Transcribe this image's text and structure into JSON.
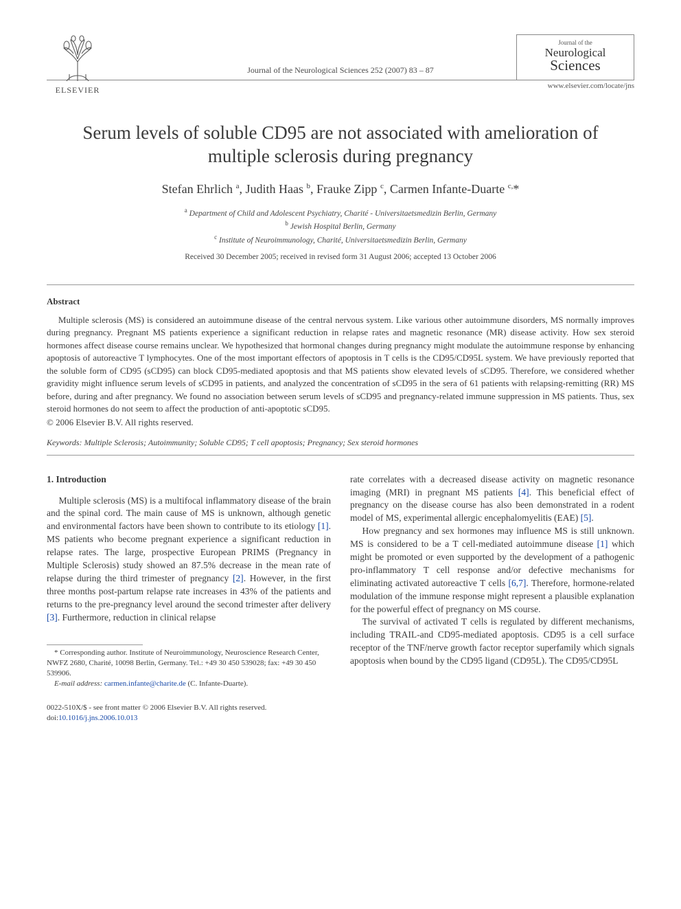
{
  "header": {
    "publisher_label": "ELSEVIER",
    "citation": "Journal of the Neurological Sciences 252 (2007) 83 – 87",
    "journal_logo": {
      "line_small": "Journal of the",
      "line1": "Neurological",
      "line2": "Sciences"
    },
    "journal_url": "www.elsevier.com/locate/jns"
  },
  "title": "Serum levels of soluble CD95 are not associated with amelioration of multiple sclerosis during pregnancy",
  "authors_html": "Stefan Ehrlich <sup>a</sup>, Judith Haas <sup>b</sup>, Frauke Zipp <sup>c</sup>, Carmen Infante-Duarte <sup>c,</sup>*",
  "affiliations": [
    "<sup>a</sup> Department of Child and Adolescent Psychiatry, Charité - Universitaetsmedizin Berlin, Germany",
    "<sup>b</sup> Jewish Hospital Berlin, Germany",
    "<sup>c</sup> Institute of Neuroimmunology, Charité, Universitaetsmedizin Berlin, Germany"
  ],
  "dates": "Received 30 December 2005; received in revised form 31 August 2006; accepted 13 October 2006",
  "abstract": {
    "heading": "Abstract",
    "body": "Multiple sclerosis (MS) is considered an autoimmune disease of the central nervous system. Like various other autoimmune disorders, MS normally improves during pregnancy. Pregnant MS patients experience a significant reduction in relapse rates and magnetic resonance (MR) disease activity. How sex steroid hormones affect disease course remains unclear. We hypothesized that hormonal changes during pregnancy might modulate the autoimmune response by enhancing apoptosis of autoreactive T lymphocytes. One of the most important effectors of apoptosis in T cells is the CD95/CD95L system. We have previously reported that the soluble form of CD95 (sCD95) can block CD95-mediated apoptosis and that MS patients show elevated levels of sCD95. Therefore, we considered whether gravidity might influence serum levels of sCD95 in patients, and analyzed the concentration of sCD95 in the sera of 61 patients with relapsing-remitting (RR) MS before, during and after pregnancy. We found no association between serum levels of sCD95 and pregnancy-related immune suppression in MS patients. Thus, sex steroid hormones do not seem to affect the production of anti-apoptotic sCD95.",
    "copyright": "© 2006 Elsevier B.V. All rights reserved."
  },
  "keywords": {
    "label": "Keywords:",
    "list": "Multiple Sclerosis; Autoimmunity; Soluble CD95; T cell apoptosis; Pregnancy; Sex steroid hormones"
  },
  "section1": {
    "heading": "1. Introduction",
    "p1_pre": "Multiple sclerosis (MS) is a multifocal inflammatory disease of the brain and the spinal cord. The main cause of MS is unknown, although genetic and environmental factors have been shown to contribute to its etiology ",
    "ref1": "[1]",
    "p1_mid1": ". MS patients who become pregnant experience a significant reduction in relapse rates. The large, prospective European PRIMS (Pregnancy in Multiple Sclerosis) study showed an 87.5% decrease in the mean rate of relapse during the third trimester of pregnancy ",
    "ref2": "[2]",
    "p1_mid2": ". However, in the first three months post-partum relapse rate increases in 43% of the patients and returns to the pre-pregnancy level around the second trimester after delivery ",
    "ref3": "[3]",
    "p1_post": ". Furthermore, reduction in clinical relapse",
    "p2_pre": "rate correlates with a decreased disease activity on magnetic resonance imaging (MRI) in pregnant MS patients ",
    "ref4": "[4]",
    "p2_mid": ". This beneficial effect of pregnancy on the disease course has also been demonstrated in a rodent model of MS, experimental allergic encephalomyelitis (EAE) ",
    "ref5": "[5]",
    "p2_post": ".",
    "p3_pre": "How pregnancy and sex hormones may influence MS is still unknown. MS is considered to be a T cell-mediated autoimmune disease ",
    "ref1b": "[1]",
    "p3_mid": " which might be promoted or even supported by the development of a pathogenic pro-inflammatory T cell response and/or defective mechanisms for eliminating activated autoreactive T cells ",
    "ref67": "[6,7]",
    "p3_post": ". Therefore, hormone-related modulation of the immune response might represent a plausible explanation for the powerful effect of pregnancy on MS course.",
    "p4": "The survival of activated T cells is regulated by different mechanisms, including TRAIL-and CD95-mediated apoptosis. CD95 is a cell surface receptor of the TNF/nerve growth factor receptor superfamily which signals apoptosis when bound by the CD95 ligand (CD95L). The CD95/CD95L"
  },
  "footnote": {
    "corresponding": "* Corresponding author. Institute of Neuroimmunology, Neuroscience Research Center, NWFZ 2680, Charité, 10098 Berlin, Germany. Tel.: +49 30 450 539028; fax: +49 30 450 539906.",
    "email_label": "E-mail address:",
    "email": "carmen.infante@charite.de",
    "email_suffix": "(C. Infante-Duarte)."
  },
  "footer": {
    "line1": "0022-510X/$ - see front matter © 2006 Elsevier B.V. All rights reserved.",
    "doi_label": "doi:",
    "doi": "10.1016/j.jns.2006.10.013"
  }
}
